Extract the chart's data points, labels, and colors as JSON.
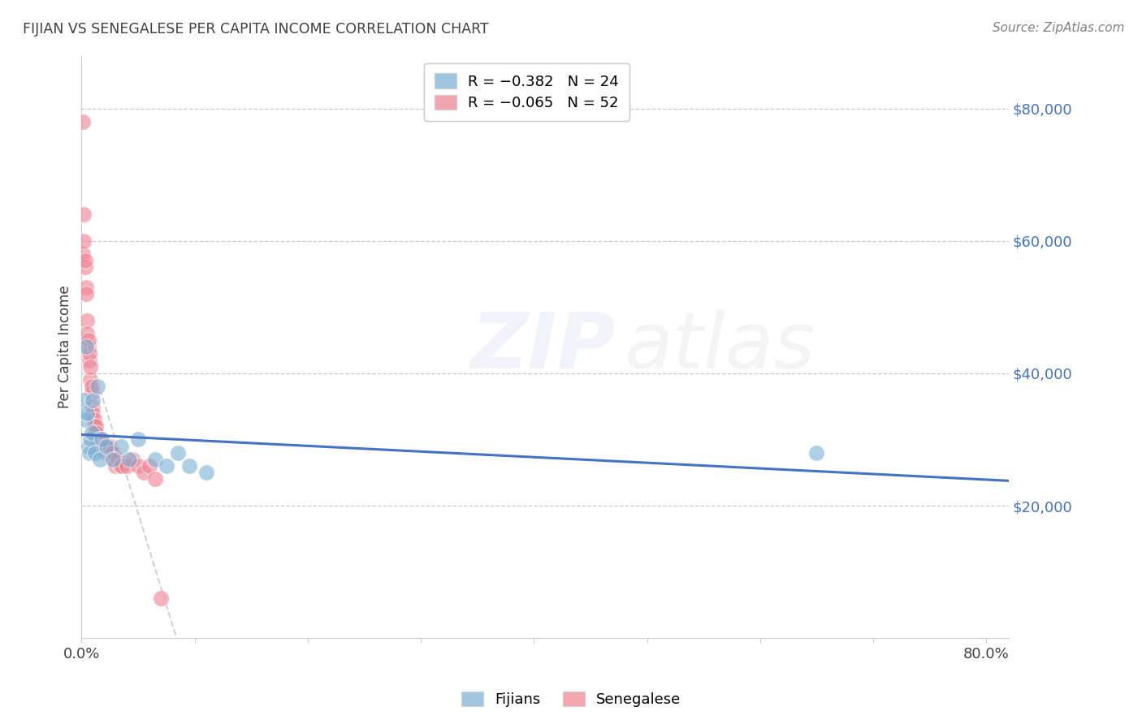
{
  "title": "FIJIAN VS SENEGALESE PER CAPITA INCOME CORRELATION CHART",
  "source": "Source: ZipAtlas.com",
  "ylabel": "Per Capita Income",
  "watermark_zip": "ZIP",
  "watermark_atlas": "atlas",
  "legend_entries": [
    {
      "label": "R = −0.382   N = 24",
      "color": "#a8c4e0"
    },
    {
      "label": "R = −0.065   N = 52",
      "color": "#f4a0b0"
    }
  ],
  "legend_bottom": [
    "Fijians",
    "Senegalese"
  ],
  "fijian_color": "#7bafd4",
  "senegalese_color": "#f08090",
  "fijian_line_color": "#4472c4",
  "senegalese_line_color": "#e87090",
  "fijians_x": [
    0.002,
    0.003,
    0.004,
    0.005,
    0.006,
    0.007,
    0.008,
    0.009,
    0.01,
    0.012,
    0.014,
    0.016,
    0.018,
    0.022,
    0.028,
    0.035,
    0.042,
    0.05,
    0.065,
    0.075,
    0.085,
    0.095,
    0.11,
    0.65
  ],
  "fijians_y": [
    36000,
    33000,
    44000,
    34000,
    29000,
    28000,
    30000,
    31000,
    36000,
    28000,
    38000,
    27000,
    30000,
    29000,
    27000,
    29000,
    27000,
    30000,
    27000,
    26000,
    28000,
    26000,
    25000,
    28000
  ],
  "senegalese_x": [
    0.001,
    0.001,
    0.002,
    0.002,
    0.003,
    0.003,
    0.004,
    0.004,
    0.005,
    0.005,
    0.006,
    0.006,
    0.007,
    0.007,
    0.008,
    0.008,
    0.009,
    0.009,
    0.01,
    0.01,
    0.011,
    0.011,
    0.012,
    0.013,
    0.013,
    0.014,
    0.015,
    0.016,
    0.017,
    0.018,
    0.019,
    0.02,
    0.021,
    0.022,
    0.023,
    0.024,
    0.025,
    0.026,
    0.027,
    0.028,
    0.029,
    0.03,
    0.032,
    0.034,
    0.036,
    0.04,
    0.045,
    0.05,
    0.055,
    0.06,
    0.065,
    0.07
  ],
  "senegalese_y": [
    78000,
    58000,
    64000,
    60000,
    56000,
    57000,
    53000,
    52000,
    48000,
    46000,
    44000,
    45000,
    42000,
    43000,
    39000,
    41000,
    37000,
    38000,
    35000,
    34000,
    33000,
    32000,
    31000,
    32000,
    31000,
    30000,
    30000,
    30000,
    29000,
    30000,
    29000,
    29000,
    28000,
    29000,
    28000,
    28000,
    29000,
    28000,
    27000,
    28000,
    27000,
    26000,
    27000,
    26000,
    26000,
    26000,
    27000,
    26000,
    25000,
    26000,
    24000,
    6000
  ],
  "xlim": [
    0,
    0.82
  ],
  "ylim": [
    0,
    88000
  ],
  "right_yticks": [
    20000,
    40000,
    60000,
    80000
  ],
  "right_ytick_labels": [
    "$20,000",
    "$40,000",
    "$60,000",
    "$80,000"
  ],
  "background_color": "#ffffff",
  "grid_color": "#c8c8c8",
  "title_color": "#404040",
  "source_color": "#808080",
  "ytick_label_color": "#4472c4",
  "xtick_label_color": "#404040"
}
